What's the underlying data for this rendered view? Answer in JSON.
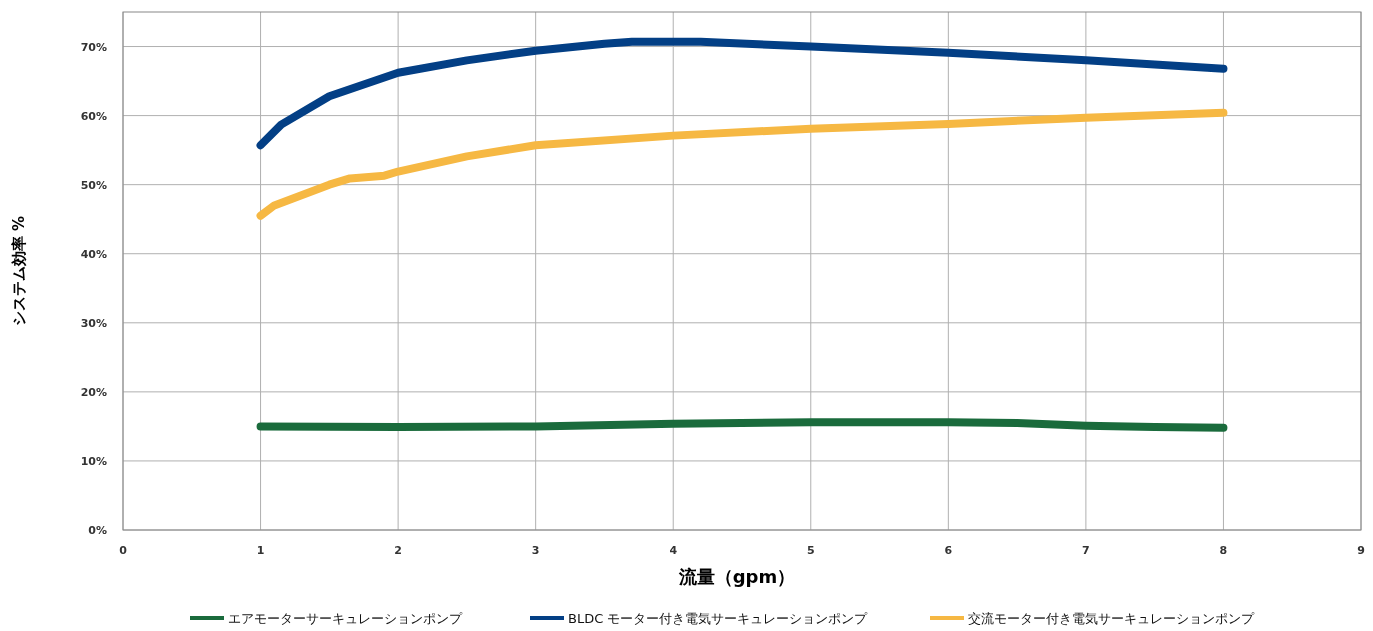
{
  "chart_data": {
    "type": "line",
    "xlabel": "流量（gpm）",
    "ylabel": "システム効率 %",
    "xlim": [
      0,
      9
    ],
    "ylim": [
      0,
      75
    ],
    "xticks": [
      0,
      1,
      2,
      3,
      4,
      5,
      6,
      7,
      8,
      9
    ],
    "yticks": [
      {
        "value": 0,
        "label": "0%"
      },
      {
        "value": 10,
        "label": "10%"
      },
      {
        "value": 20,
        "label": "20%"
      },
      {
        "value": 30,
        "label": "30%"
      },
      {
        "value": 40,
        "label": "40%"
      },
      {
        "value": 50,
        "label": "50%"
      },
      {
        "value": 60,
        "label": "60%"
      },
      {
        "value": 70,
        "label": "70%"
      }
    ],
    "grid": true,
    "legend": "bottom",
    "line_style": "solid",
    "marker": "none",
    "series": [
      {
        "name": "エアモーターサーキュレーションポンプ",
        "color": "#1a6b3c",
        "x": [
          1,
          2,
          3,
          4,
          5,
          6,
          6.5,
          7,
          7.5,
          8
        ],
        "values": [
          15,
          14.9,
          15,
          15.4,
          15.6,
          15.6,
          15.5,
          15.1,
          14.9,
          14.8
        ]
      },
      {
        "name": "BLDC モーター付き電気サーキュレーションポンプ",
        "color": "#033f85",
        "x": [
          1,
          1.15,
          1.5,
          2,
          2.5,
          3,
          3.5,
          3.7,
          4,
          4.2,
          5,
          6,
          7,
          8
        ],
        "values": [
          55.7,
          58.7,
          62.8,
          66.2,
          68,
          69.4,
          70.4,
          70.7,
          70.7,
          70.7,
          70,
          69.1,
          68,
          66.8
        ]
      },
      {
        "name": "交流モーター付き電気サーキュレーションポンプ",
        "color": "#f6b843",
        "x": [
          1,
          1.1,
          1.5,
          1.65,
          1.9,
          2,
          2.5,
          3,
          4,
          5,
          6,
          7,
          8
        ],
        "values": [
          45.5,
          47,
          50,
          50.9,
          51.3,
          51.9,
          54.1,
          55.7,
          57.1,
          58.1,
          58.8,
          59.7,
          60.4
        ]
      }
    ]
  }
}
